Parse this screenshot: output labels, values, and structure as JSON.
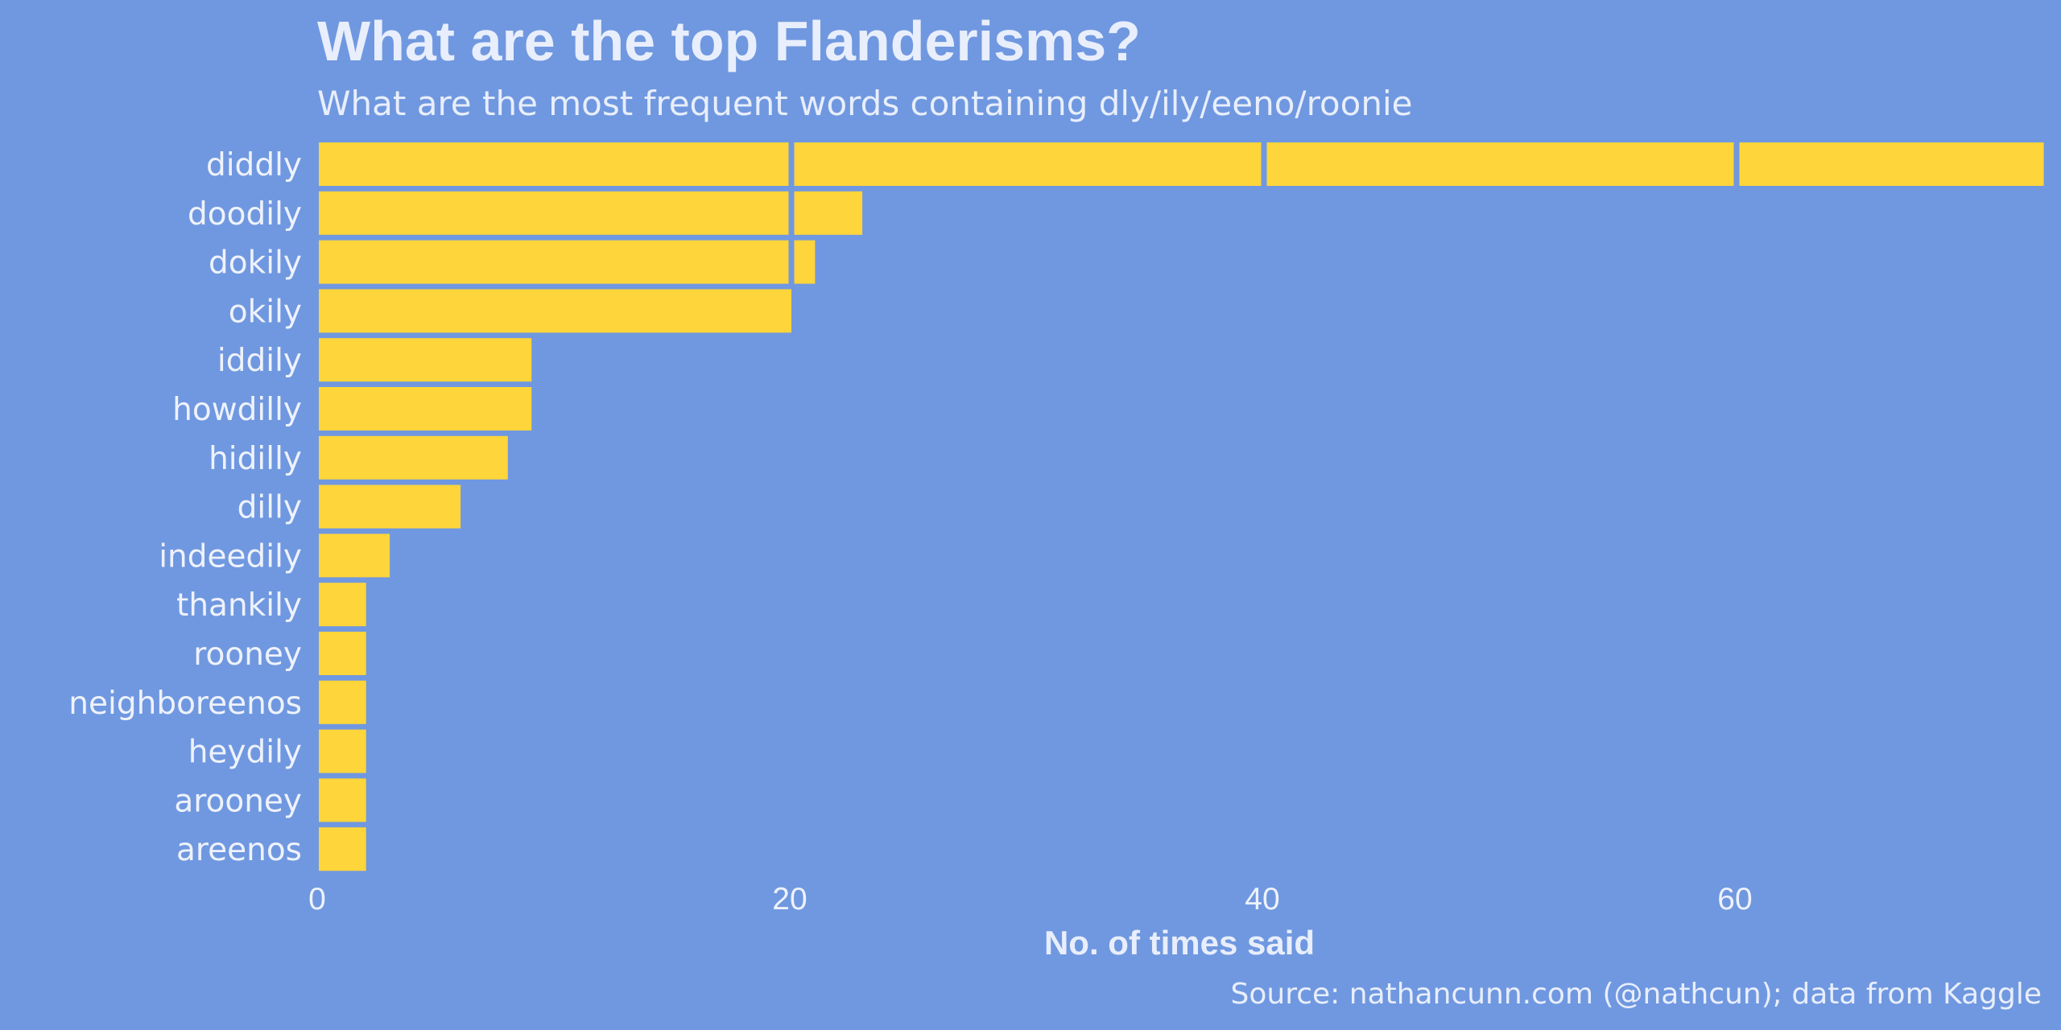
{
  "chart_data": {
    "type": "bar",
    "orientation": "horizontal",
    "title": "What are the top Flanderisms?",
    "subtitle": "What are the most frequent words containing dly/ily/eeno/roonie",
    "xlabel": "No. of times said",
    "caption": "Source: nathancunn.com (@nathcun); data from Kaggle",
    "categories": [
      "diddly",
      "doodily",
      "dokily",
      "okily",
      "iddily",
      "howdilly",
      "hidilly",
      "dilly",
      "indeedily",
      "thankily",
      "rooney",
      "neighboreenos",
      "heydily",
      "arooney",
      "areenos"
    ],
    "values": [
      73,
      23,
      21,
      20,
      9,
      9,
      8,
      6,
      3,
      2,
      2,
      2,
      2,
      2,
      2
    ],
    "xticks": [
      0,
      20,
      40,
      60
    ],
    "xlim": [
      0,
      73
    ],
    "bar_segment_size": 20,
    "grid": false,
    "colors": {
      "background": "#7098e0",
      "bar": "#fed53a",
      "text": "#e8eefc"
    }
  }
}
